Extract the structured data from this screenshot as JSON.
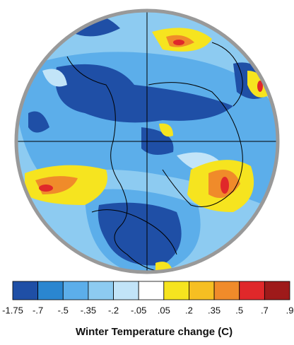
{
  "colorbar": {
    "colors": [
      "#1f4fa6",
      "#2a86d0",
      "#5caeea",
      "#8dcbf1",
      "#c2e4f8",
      "#ffffff",
      "#f6e41f",
      "#f6bf22",
      "#f08b2a",
      "#e0282a",
      "#9e1a1a"
    ],
    "ticks": [
      "-1.75",
      "-.7",
      "-.5",
      "-.35",
      "-.2",
      "-.05",
      ".05",
      ".2",
      ".35",
      ".5",
      ".7",
      ".9"
    ]
  },
  "title": "Winter Temperature change (C)"
}
